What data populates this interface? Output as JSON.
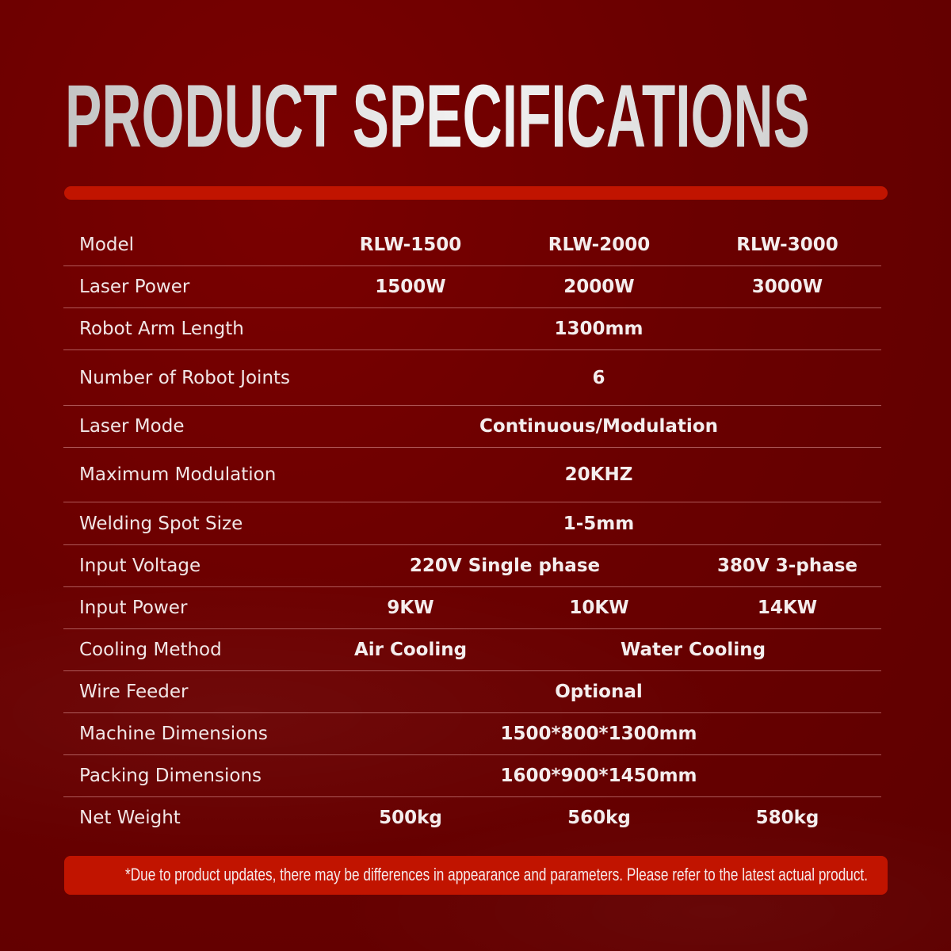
{
  "title": "PRODUCT SPECIFICATIONS",
  "colors": {
    "background": "#6a0000",
    "accent": "#c11400",
    "text": "#f1e6e6"
  },
  "rows": [
    {
      "label": "Model",
      "cells": [
        {
          "text": "RLW-1500",
          "span": 1
        },
        {
          "text": "RLW-2000",
          "span": 1
        },
        {
          "text": "RLW-3000",
          "span": 1
        }
      ]
    },
    {
      "label": "Laser Power",
      "cells": [
        {
          "text": "1500W",
          "span": 1
        },
        {
          "text": "2000W",
          "span": 1
        },
        {
          "text": "3000W",
          "span": 1
        }
      ]
    },
    {
      "label": "Robot Arm Length",
      "cells": [
        {
          "text": "1300mm",
          "span": 3
        }
      ]
    },
    {
      "label": "Number of Robot Joints",
      "cells": [
        {
          "text": "6",
          "span": 3
        }
      ]
    },
    {
      "label": "Laser Mode",
      "cells": [
        {
          "text": "Continuous/Modulation",
          "span": 3
        }
      ]
    },
    {
      "label": "Maximum Modulation",
      "cells": [
        {
          "text": "20KHZ",
          "span": 3
        }
      ]
    },
    {
      "label": "Welding Spot Size",
      "cells": [
        {
          "text": "1-5mm",
          "span": 3
        }
      ]
    },
    {
      "label": "Input Voltage",
      "cells": [
        {
          "text": "220V Single phase",
          "span": 2
        },
        {
          "text": "380V 3-phase",
          "span": 1
        }
      ]
    },
    {
      "label": "Input Power",
      "cells": [
        {
          "text": "9KW",
          "span": 1
        },
        {
          "text": "10KW",
          "span": 1
        },
        {
          "text": "14KW",
          "span": 1
        }
      ]
    },
    {
      "label": "Cooling Method",
      "cells": [
        {
          "text": "Air Cooling",
          "span": 1
        },
        {
          "text": "Water Cooling",
          "span": 2
        }
      ]
    },
    {
      "label": "Wire Feeder",
      "cells": [
        {
          "text": "Optional",
          "span": 3
        }
      ]
    },
    {
      "label": "Machine Dimensions",
      "cells": [
        {
          "text": "1500*800*1300mm",
          "span": 3
        }
      ]
    },
    {
      "label": "Packing Dimensions",
      "cells": [
        {
          "text": "1600*900*1450mm",
          "span": 3
        }
      ]
    },
    {
      "label": "Net Weight",
      "cells": [
        {
          "text": "500kg",
          "span": 1
        },
        {
          "text": "560kg",
          "span": 1
        },
        {
          "text": "580kg",
          "span": 1
        }
      ]
    }
  ],
  "footnote": "*Due to product updates, there may be differences in appearance and parameters. Please refer to the latest actual product."
}
